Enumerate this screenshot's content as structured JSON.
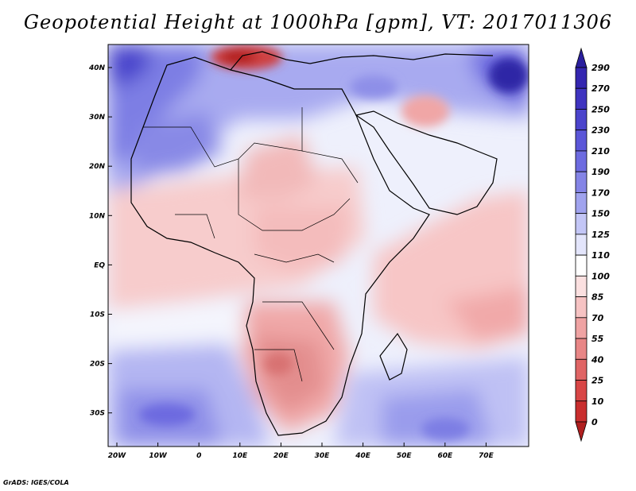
{
  "title": "Geopotential Height at 1000hPa [gpm], VT: 2017011306",
  "footer": "GrADS: IGES/COLA",
  "axes": {
    "lon_labels": [
      "20W",
      "10W",
      "0",
      "10E",
      "20E",
      "30E",
      "40E",
      "50E",
      "60E",
      "70E"
    ],
    "lat_labels": [
      "40N",
      "30N",
      "20N",
      "10N",
      "EQ",
      "10S",
      "20S",
      "30S"
    ]
  },
  "colorbar": {
    "labels": [
      "290",
      "270",
      "250",
      "230",
      "210",
      "190",
      "170",
      "150",
      "125",
      "110",
      "100",
      "85",
      "70",
      "55",
      "40",
      "25",
      "10",
      "0"
    ],
    "colors": [
      "#2a1f9e",
      "#3426b0",
      "#3f34c0",
      "#4b44cc",
      "#5b56d8",
      "#6d6be0",
      "#8484e6",
      "#a0a3ee",
      "#c3c6f6",
      "#e3e5fb",
      "#ffffff",
      "#fbe0e0",
      "#f6c3c3",
      "#efa3a3",
      "#e88686",
      "#e06565",
      "#d84646",
      "#c92e2e",
      "#b01f1f"
    ]
  },
  "map_data": {
    "region": "Africa",
    "lon_range": [
      -22,
      82
    ],
    "lat_range": [
      -37,
      45
    ],
    "field": "1000hPa geopotential height (gpm)",
    "valid_time": "2017011306"
  }
}
